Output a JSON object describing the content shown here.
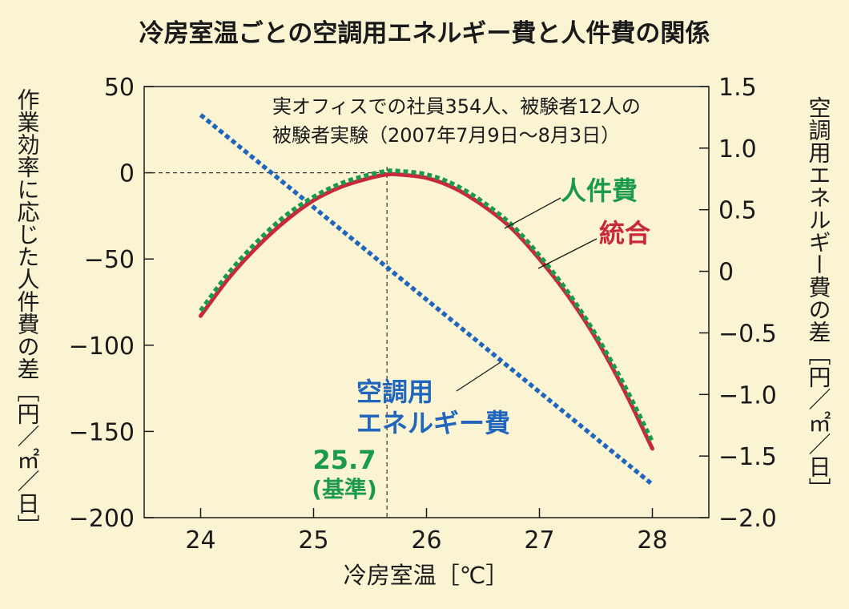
{
  "chart_data": {
    "type": "line",
    "title": "冷房室温ごとの空調用エネルギー費と人件費の関係",
    "xlabel": "冷房室温［℃］",
    "ylabel_left": "作業効率に応じた人件費の差［円／㎡／日］",
    "ylabel_right": "空調用エネルギー費の差［円／㎡／日］",
    "xlim": [
      23.5,
      28.5
    ],
    "ylim_left": [
      -200,
      50
    ],
    "ylim_right": [
      -2.0,
      1.5
    ],
    "x_ticks": [
      "24",
      "25",
      "26",
      "27",
      "28"
    ],
    "y_left_ticks": [
      "50",
      "0",
      "−50",
      "−100",
      "−150",
      "−200"
    ],
    "y_right_ticks": [
      "1.5",
      "1.0",
      "0.5",
      "0",
      "−0.5",
      "−1.0",
      "−1.5",
      "−2.0"
    ],
    "grid": false,
    "annotation": {
      "line1": "実オフィスでの社員354人、被験者12人の",
      "line2": "被験者実験（2007年7月9日〜8月3日）"
    },
    "reference": {
      "x": 25.65,
      "label1": "25.7",
      "label2": "(基準)"
    },
    "series": [
      {
        "name": "人件費",
        "axis": "left",
        "color": "#1a9a4a",
        "style": "dotted",
        "x": [
          24.0,
          24.25,
          24.5,
          24.75,
          25.0,
          25.25,
          25.5,
          25.65,
          25.75,
          26.0,
          26.25,
          26.5,
          26.75,
          27.0,
          27.25,
          27.5,
          27.75,
          28.0
        ],
        "y": [
          -80,
          -58,
          -40,
          -25,
          -14,
          -6,
          -1,
          1,
          1,
          -1,
          -7,
          -17,
          -30,
          -48,
          -69,
          -94,
          -123,
          -156
        ]
      },
      {
        "name": "統合",
        "axis": "left",
        "color": "#c8283a",
        "style": "solid",
        "x": [
          24.0,
          24.25,
          24.5,
          24.75,
          25.0,
          25.25,
          25.5,
          25.65,
          25.75,
          26.0,
          26.25,
          26.5,
          26.75,
          27.0,
          27.25,
          27.5,
          27.75,
          28.0
        ],
        "y": [
          -83,
          -61,
          -43,
          -28,
          -16,
          -8,
          -3,
          -1,
          -1,
          -3,
          -9,
          -19,
          -32,
          -50,
          -71,
          -96,
          -126,
          -160
        ]
      },
      {
        "name": "空調用エネルギー費",
        "axis": "right",
        "color": "#1f66bc",
        "style": "dotted",
        "x": [
          24.0,
          28.0
        ],
        "y": [
          1.27,
          -1.73
        ]
      }
    ],
    "series_labels": {
      "jinkenhi": "人件費",
      "tougou": "統合",
      "kuchou1": "空調用",
      "kuchou2": "エネルギー費"
    }
  }
}
